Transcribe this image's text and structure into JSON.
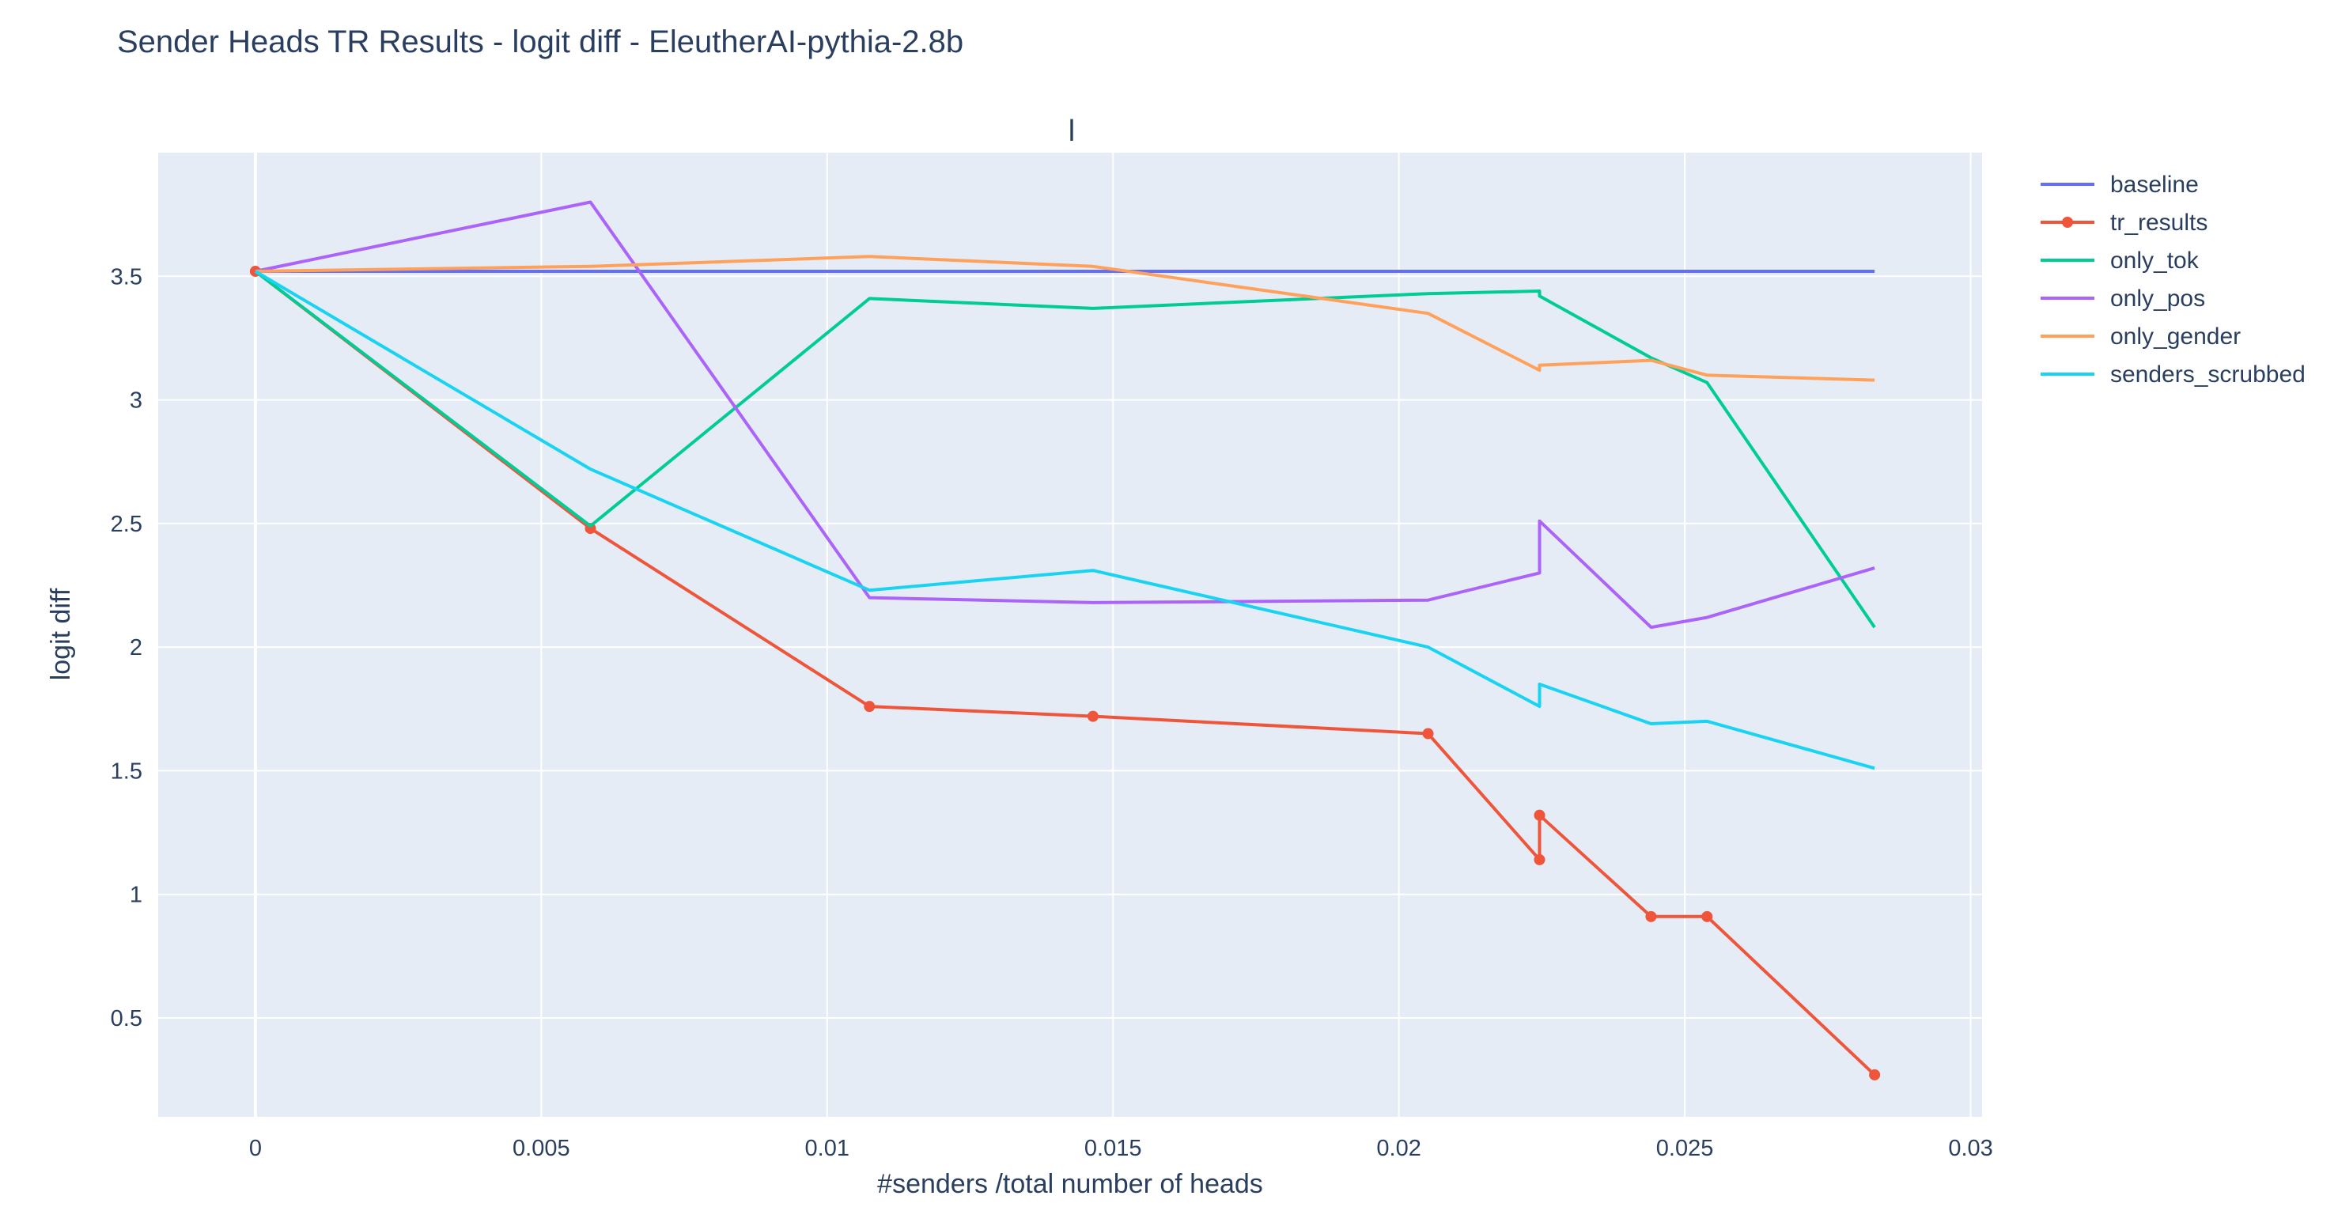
{
  "chart_data": {
    "type": "line",
    "title": "Sender Heads TR Results - logit diff - EleutherAI-pythia-2.8b",
    "subtitle": "l",
    "xlabel": "#senders /total number of heads",
    "ylabel": "logit diff",
    "xlim": [
      -0.0017,
      0.0302
    ],
    "ylim": [
      0.1,
      4.0
    ],
    "x_ticks": [
      0,
      0.005,
      0.01,
      0.015,
      0.02,
      0.025,
      0.03
    ],
    "x_tick_labels": [
      "0",
      "0.005",
      "0.01",
      "0.015",
      "0.02",
      "0.025",
      "0.03"
    ],
    "y_ticks": [
      0.5,
      1,
      1.5,
      2,
      2.5,
      3,
      3.5
    ],
    "y_tick_labels": [
      "0.5",
      "1",
      "1.5",
      "2",
      "2.5",
      "3",
      "3.5"
    ],
    "grid": true,
    "legend_position": "right",
    "plot_bgcolor": "#e5ecf6",
    "series": [
      {
        "name": "baseline",
        "color": "#636efa",
        "markers": false,
        "x": [
          0,
          0.00586,
          0.01074,
          0.01465,
          0.02051,
          0.02246,
          0.02246,
          0.02441,
          0.02539,
          0.02832
        ],
        "y": [
          3.52,
          3.52,
          3.52,
          3.52,
          3.52,
          3.52,
          3.52,
          3.52,
          3.52,
          3.52
        ]
      },
      {
        "name": "tr_results",
        "color": "#ef553b",
        "markers": true,
        "x": [
          0,
          0.00586,
          0.01074,
          0.01465,
          0.02051,
          0.02246,
          0.02246,
          0.02441,
          0.02539,
          0.02832
        ],
        "y": [
          3.52,
          2.48,
          1.76,
          1.72,
          1.65,
          1.14,
          1.32,
          0.91,
          0.91,
          0.27
        ]
      },
      {
        "name": "only_tok",
        "color": "#00cc96",
        "markers": false,
        "x": [
          0,
          0.00586,
          0.01074,
          0.01465,
          0.02051,
          0.02246,
          0.02246,
          0.02441,
          0.02539,
          0.02832
        ],
        "y": [
          3.52,
          2.49,
          3.41,
          3.37,
          3.43,
          3.44,
          3.42,
          3.17,
          3.07,
          2.08
        ]
      },
      {
        "name": "only_pos",
        "color": "#ab63fa",
        "markers": false,
        "x": [
          0,
          0.00586,
          0.01074,
          0.01465,
          0.02051,
          0.02246,
          0.02246,
          0.02441,
          0.02539,
          0.02832
        ],
        "y": [
          3.52,
          3.8,
          2.2,
          2.18,
          2.19,
          2.3,
          2.51,
          2.08,
          2.12,
          2.32
        ]
      },
      {
        "name": "only_gender",
        "color": "#ffa15a",
        "markers": false,
        "x": [
          0,
          0.00586,
          0.01074,
          0.01465,
          0.02051,
          0.02246,
          0.02246,
          0.02441,
          0.02539,
          0.02832
        ],
        "y": [
          3.52,
          3.54,
          3.58,
          3.54,
          3.35,
          3.12,
          3.14,
          3.16,
          3.1,
          3.08
        ]
      },
      {
        "name": "senders_scrubbed",
        "color": "#19d3f3",
        "markers": false,
        "x": [
          0,
          0.00586,
          0.01074,
          0.01465,
          0.02051,
          0.02246,
          0.02246,
          0.02441,
          0.02539,
          0.02832
        ],
        "y": [
          3.52,
          2.72,
          2.23,
          2.31,
          2.0,
          1.76,
          1.85,
          1.69,
          1.7,
          1.51
        ]
      }
    ]
  }
}
